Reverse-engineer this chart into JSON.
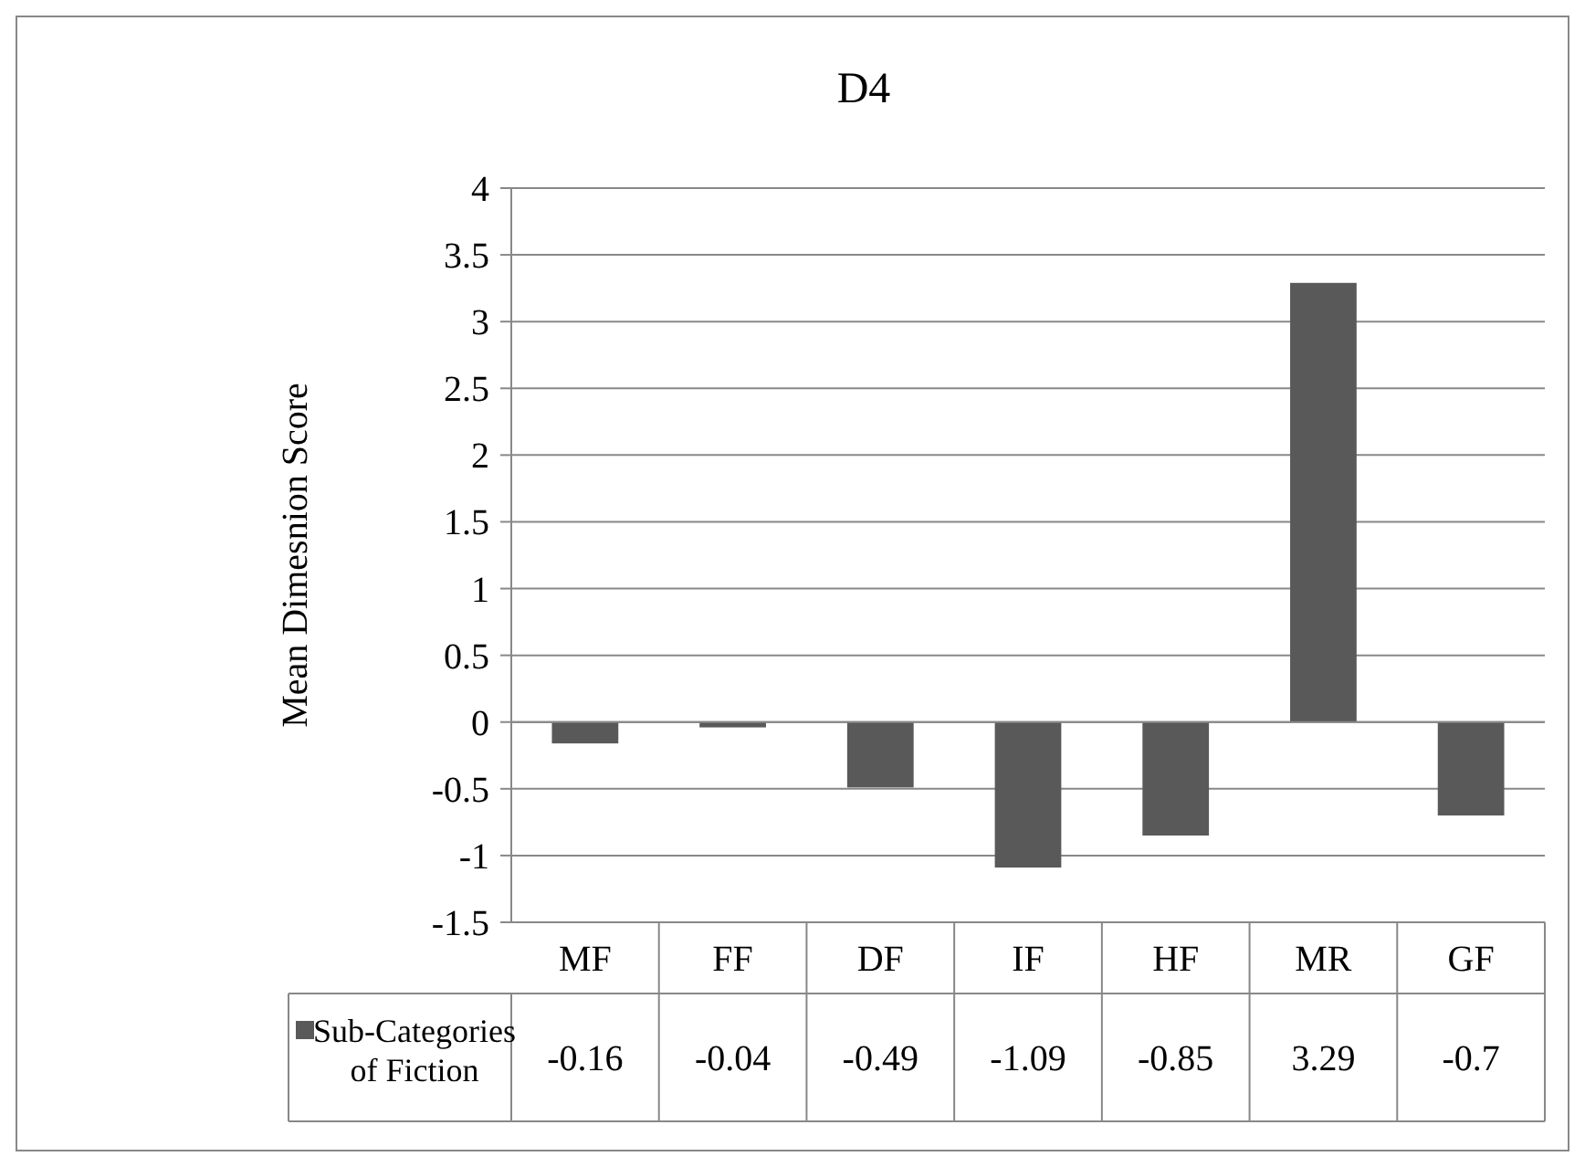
{
  "chart_data": {
    "type": "bar",
    "title": "D4",
    "ylabel": "Mean Dimesnion Score",
    "categories": [
      "MF",
      "FF",
      "DF",
      "IF",
      "HF",
      "MR",
      "GF"
    ],
    "series": [
      {
        "name": "Sub-Categories of Fiction",
        "color": "#595959",
        "values": [
          -0.16,
          -0.04,
          -0.49,
          -1.09,
          -0.85,
          3.29,
          -0.7
        ]
      }
    ],
    "ylim": [
      -1.5,
      4
    ],
    "yticks": [
      -1.5,
      -1,
      -0.5,
      0,
      0.5,
      1,
      1.5,
      2,
      2.5,
      3,
      3.5,
      4
    ],
    "grid": "y",
    "legend": "bottom",
    "data_labels": true
  }
}
